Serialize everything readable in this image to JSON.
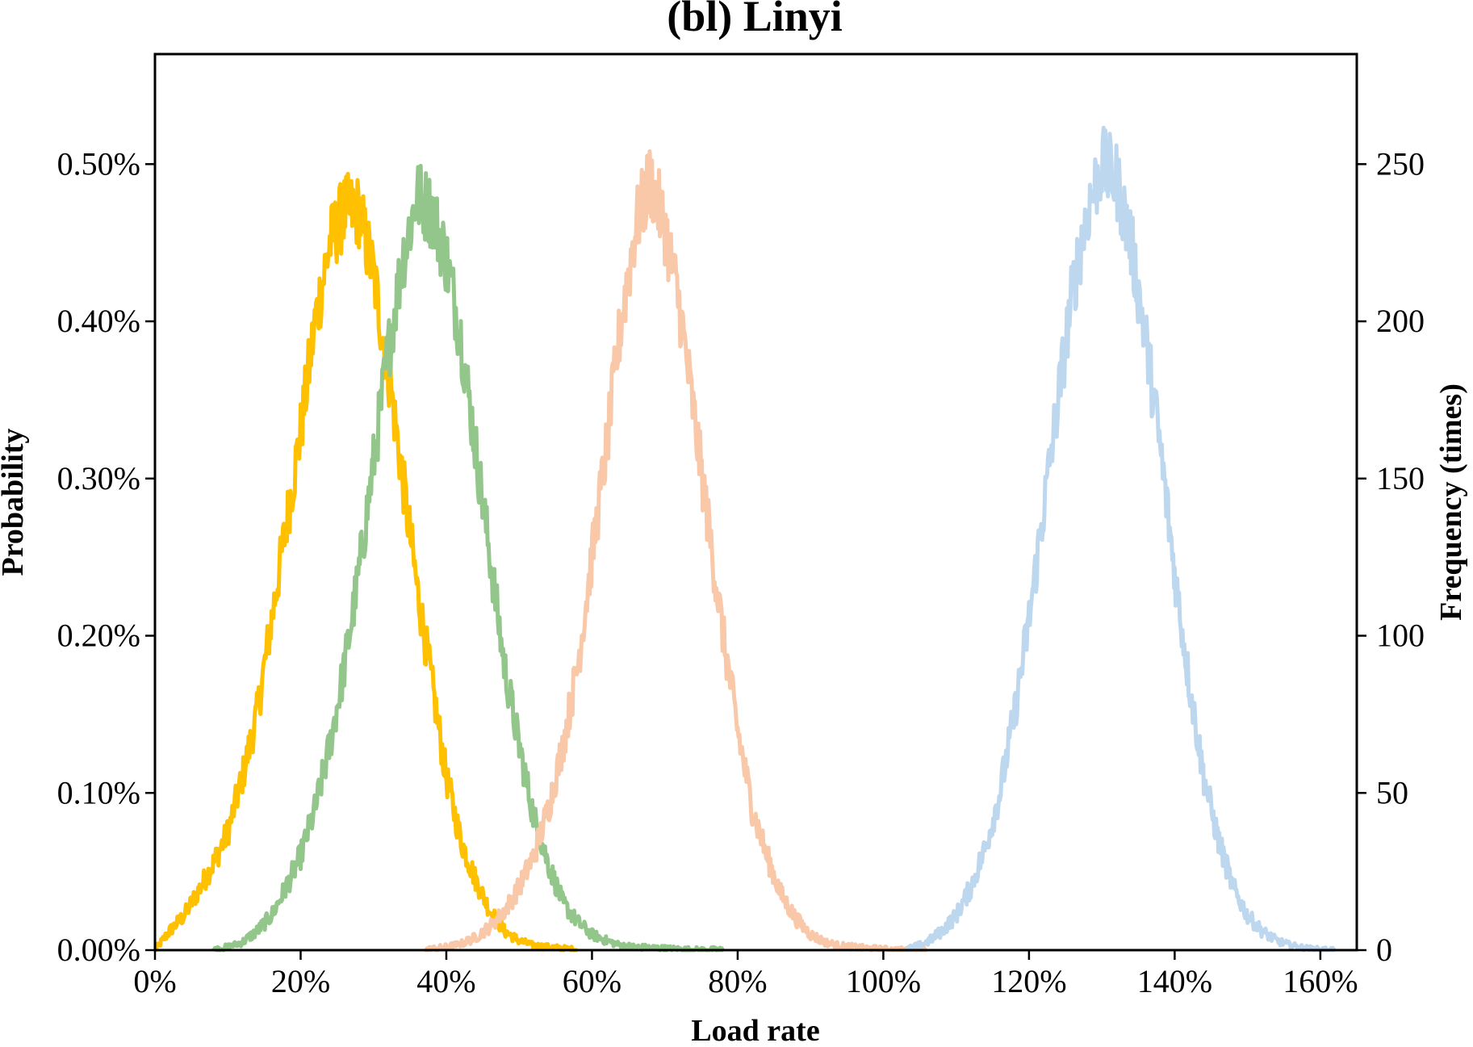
{
  "chart_data": {
    "type": "line",
    "title": "(bl) Linyi",
    "xlabel": "Load rate",
    "ylabel": "Probability",
    "ylabel_right": "Frequency (times)",
    "xlim": [
      0,
      165
    ],
    "ylim": [
      0,
      0.57
    ],
    "ylim_right": [
      0,
      285
    ],
    "x_ticks": [
      0,
      20,
      40,
      60,
      80,
      100,
      120,
      140,
      160
    ],
    "x_tick_labels": [
      "0%",
      "20%",
      "40%",
      "60%",
      "80%",
      "100%",
      "120%",
      "140%",
      "160%"
    ],
    "y_ticks": [
      0,
      0.1,
      0.2,
      0.3,
      0.4,
      0.5
    ],
    "y_tick_labels": [
      "0.00%",
      "0.10%",
      "0.20%",
      "0.30%",
      "0.40%",
      "0.50%"
    ],
    "y_right_ticks": [
      0,
      50,
      100,
      150,
      200,
      250
    ],
    "y_right_tick_labels": [
      "0",
      "50",
      "100",
      "150",
      "200",
      "250"
    ],
    "grid": false,
    "legend": "none",
    "series": [
      {
        "color": "#FFC000",
        "x": [
          0,
          2,
          4,
          6,
          8,
          10,
          12,
          14,
          16,
          18,
          20,
          22,
          24,
          26,
          28,
          30,
          32,
          34,
          36,
          38,
          40,
          42,
          44,
          46,
          48,
          50,
          52,
          54,
          56,
          58
        ],
        "y": [
          0.0,
          0.012,
          0.022,
          0.038,
          0.055,
          0.075,
          0.11,
          0.15,
          0.21,
          0.27,
          0.33,
          0.4,
          0.45,
          0.47,
          0.47,
          0.43,
          0.37,
          0.3,
          0.23,
          0.17,
          0.11,
          0.07,
          0.045,
          0.025,
          0.012,
          0.006,
          0.003,
          0.002,
          0.001,
          0.0
        ]
      },
      {
        "color": "#93C68A",
        "x": [
          8,
          10,
          12,
          14,
          16,
          18,
          20,
          22,
          24,
          26,
          28,
          30,
          32,
          34,
          36,
          38,
          40,
          42,
          44,
          46,
          48,
          50,
          52,
          54,
          56,
          58,
          60,
          62,
          64,
          66,
          70,
          74,
          78
        ],
        "y": [
          0.0,
          0.002,
          0.005,
          0.012,
          0.022,
          0.04,
          0.06,
          0.09,
          0.13,
          0.18,
          0.24,
          0.31,
          0.38,
          0.44,
          0.48,
          0.47,
          0.44,
          0.39,
          0.32,
          0.25,
          0.18,
          0.13,
          0.085,
          0.055,
          0.03,
          0.018,
          0.01,
          0.006,
          0.003,
          0.002,
          0.001,
          0.0,
          0.0
        ]
      },
      {
        "color": "#F8C8A8",
        "x": [
          37,
          40,
          42,
          44,
          46,
          48,
          50,
          52,
          54,
          56,
          58,
          60,
          62,
          64,
          66,
          68,
          70,
          72,
          74,
          76,
          78,
          80,
          82,
          84,
          86,
          88,
          90,
          92,
          94,
          98,
          102,
          106
        ],
        "y": [
          0.0,
          0.002,
          0.004,
          0.008,
          0.015,
          0.025,
          0.04,
          0.06,
          0.09,
          0.13,
          0.18,
          0.25,
          0.32,
          0.4,
          0.46,
          0.49,
          0.46,
          0.41,
          0.34,
          0.27,
          0.2,
          0.14,
          0.09,
          0.06,
          0.035,
          0.02,
          0.01,
          0.005,
          0.003,
          0.001,
          0.0,
          0.0
        ]
      },
      {
        "color": "#BDD7EE",
        "x": [
          103,
          106,
          108,
          110,
          112,
          114,
          116,
          118,
          120,
          122,
          124,
          126,
          128,
          130,
          132,
          134,
          136,
          138,
          140,
          142,
          144,
          146,
          148,
          150,
          152,
          154,
          156,
          158,
          160,
          162
        ],
        "y": [
          0.0,
          0.005,
          0.012,
          0.022,
          0.04,
          0.065,
          0.1,
          0.15,
          0.21,
          0.28,
          0.35,
          0.42,
          0.47,
          0.5,
          0.49,
          0.45,
          0.39,
          0.32,
          0.24,
          0.17,
          0.11,
          0.07,
          0.04,
          0.022,
          0.012,
          0.006,
          0.003,
          0.001,
          0.0,
          0.0
        ]
      }
    ]
  }
}
